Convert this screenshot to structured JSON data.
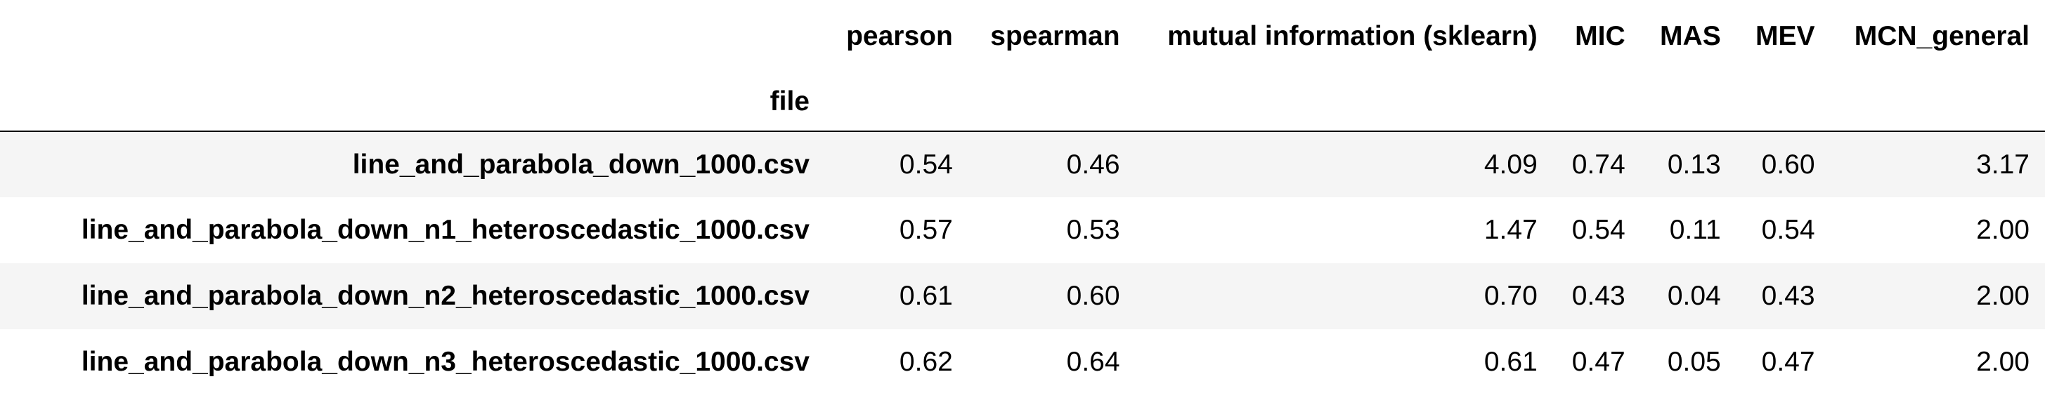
{
  "table": {
    "columns": [
      "pearson",
      "spearman",
      "mutual information (sklearn)",
      "MIC",
      "MAS",
      "MEV",
      "MCN_general"
    ],
    "index_name": "file",
    "rows": [
      {
        "file": "line_and_parabola_down_1000.csv",
        "values": [
          "0.54",
          "0.46",
          "4.09",
          "0.74",
          "0.13",
          "0.60",
          "3.17"
        ]
      },
      {
        "file": "line_and_parabola_down_n1_heteroscedastic_1000.csv",
        "values": [
          "0.57",
          "0.53",
          "1.47",
          "0.54",
          "0.11",
          "0.54",
          "2.00"
        ]
      },
      {
        "file": "line_and_parabola_down_n2_heteroscedastic_1000.csv",
        "values": [
          "0.61",
          "0.60",
          "0.70",
          "0.43",
          "0.04",
          "0.43",
          "2.00"
        ]
      },
      {
        "file": "line_and_parabola_down_n3_heteroscedastic_1000.csv",
        "values": [
          "0.62",
          "0.64",
          "0.61",
          "0.47",
          "0.05",
          "0.47",
          "2.00"
        ]
      }
    ]
  }
}
